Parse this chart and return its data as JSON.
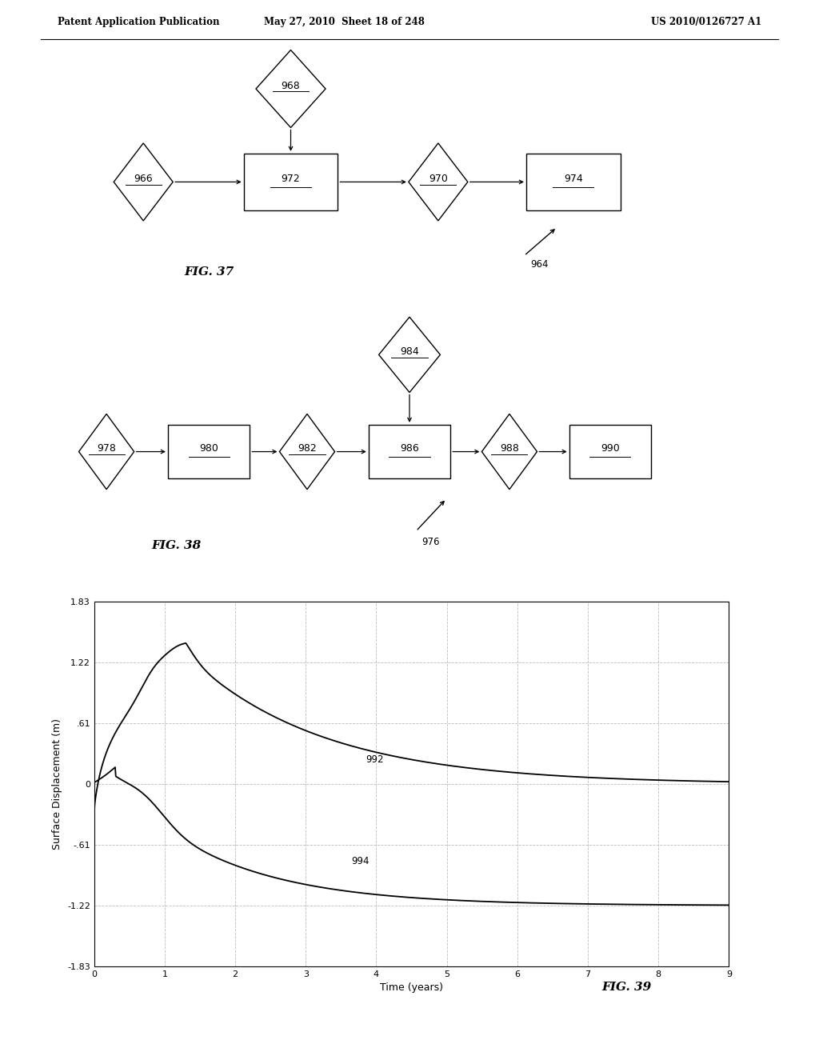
{
  "header_left": "Patent Application Publication",
  "header_mid": "May 27, 2010  Sheet 18 of 248",
  "header_right": "US 2010/0126727 A1",
  "fig37_label": "FIG. 37",
  "fig38_label": "FIG. 38",
  "fig39_label": "FIG. 39",
  "fig37_ref": "964",
  "fig38_ref": "976",
  "graph_ylabel": "Surface Displacement (m)",
  "graph_xlabel": "Time (years)",
  "graph_yticks": [
    -1.83,
    -1.22,
    -0.61,
    0,
    0.61,
    1.22,
    1.83
  ],
  "graph_ytick_labels": [
    "-1.83",
    "-1.22",
    "-.61",
    "0",
    ".61",
    "1.22",
    "1.83"
  ],
  "graph_xticks": [
    0,
    1,
    2,
    3,
    4,
    5,
    6,
    7,
    8,
    9
  ],
  "graph_xlim": [
    0,
    9
  ],
  "graph_ylim": [
    -1.83,
    1.83
  ],
  "curve992_label": "992",
  "curve994_label": "994",
  "bg_color": "#ffffff",
  "line_color": "#000000",
  "grid_color": "#bbbbbb"
}
